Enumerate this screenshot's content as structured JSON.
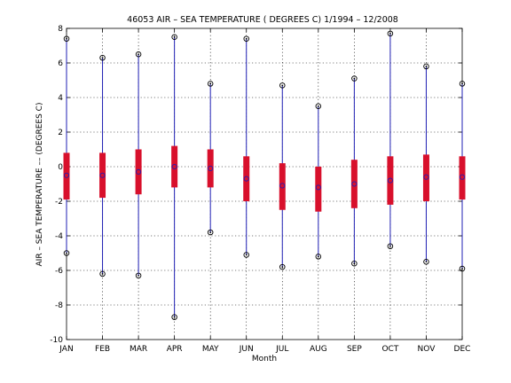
{
  "chart_data": {
    "type": "box",
    "title": "46053  AIR – SEA TEMPERATURE ( DEGREES C) 1/1994 – 12/2008",
    "xlabel": "Month",
    "ylabel": "AIR – SEA TEMPERATURE –– (DEGREES C)",
    "ylim": [
      -10,
      8
    ],
    "yticks": [
      -10,
      -8,
      -6,
      -4,
      -2,
      0,
      2,
      4,
      6,
      8
    ],
    "grid": true,
    "categories": [
      "JAN",
      "FEB",
      "MAR",
      "APR",
      "MAY",
      "JUN",
      "JUL",
      "AUG",
      "SEP",
      "OCT",
      "NOV",
      "DEC"
    ],
    "series": [
      {
        "role": "range (min to max)",
        "color": "#1f1fb4",
        "min": [
          -5.0,
          -6.2,
          -6.3,
          -8.7,
          -3.8,
          -5.1,
          -5.8,
          -5.2,
          -5.6,
          -4.6,
          -5.5,
          -5.9
        ],
        "max": [
          7.4,
          6.3,
          6.5,
          7.5,
          4.8,
          7.4,
          4.7,
          3.5,
          5.1,
          7.7,
          5.8,
          4.8
        ]
      },
      {
        "role": "interquartile band",
        "color": "#d8102c",
        "q1": [
          -1.9,
          -1.8,
          -1.6,
          -1.2,
          -1.2,
          -2.0,
          -2.5,
          -2.6,
          -2.4,
          -2.2,
          -2.0,
          -1.9
        ],
        "q3": [
          0.8,
          0.8,
          1.0,
          1.2,
          1.0,
          0.6,
          0.2,
          0.0,
          0.4,
          0.6,
          0.7,
          0.6
        ]
      },
      {
        "role": "center marker",
        "color": "#1f1fb4",
        "center": [
          -0.5,
          -0.5,
          -0.3,
          0.0,
          -0.1,
          -0.7,
          -1.1,
          -1.2,
          -1.0,
          -0.8,
          -0.6,
          -0.6
        ]
      }
    ]
  }
}
